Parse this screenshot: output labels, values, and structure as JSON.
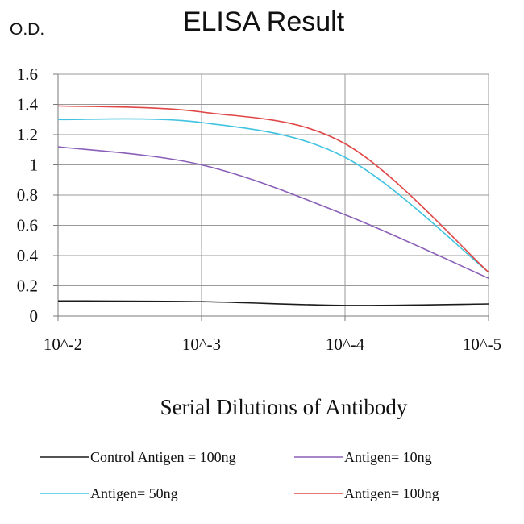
{
  "chart_data": {
    "type": "line",
    "title": "ELISA Result",
    "ylabel": "O.D.",
    "xlabel": "Serial Dilutions of Antibody",
    "categories": [
      "10^-2",
      "10^-3",
      "10^-4",
      "10^-5"
    ],
    "ylim": [
      0,
      1.6
    ],
    "yticks": [
      "0",
      "0.2",
      "0.4",
      "0.6",
      "0.8",
      "1",
      "1.2",
      "1.4",
      "1.6"
    ],
    "grid": true,
    "legend_position": "bottom",
    "series": [
      {
        "name": "Control Antigen = 100ng",
        "color": "#1a1a1a",
        "values": [
          0.1,
          0.095,
          0.07,
          0.08
        ]
      },
      {
        "name": "Antigen= 10ng",
        "color": "#8a5fb8",
        "values": [
          1.12,
          1.0,
          0.67,
          0.25
        ]
      },
      {
        "name": "Antigen= 50ng",
        "color": "#3fc3e0",
        "values": [
          1.3,
          1.28,
          1.05,
          0.29
        ]
      },
      {
        "name": "Antigen= 100ng",
        "color": "#e04848",
        "values": [
          1.39,
          1.35,
          1.14,
          0.29
        ]
      }
    ]
  }
}
